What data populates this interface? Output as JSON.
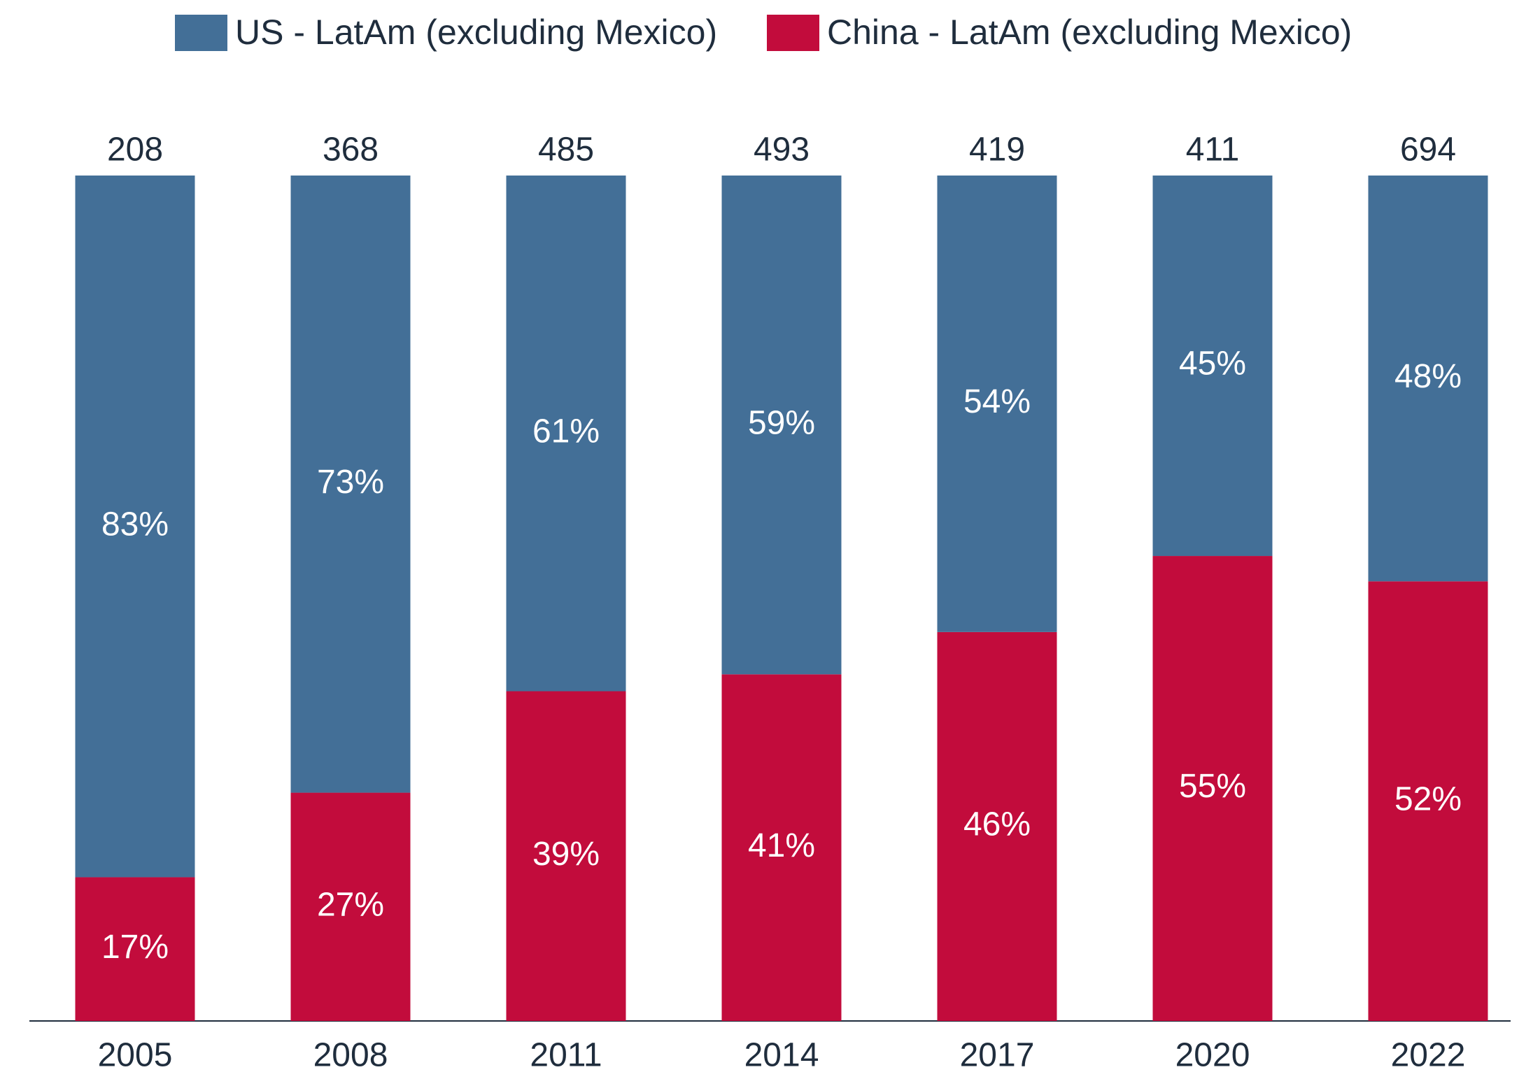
{
  "chart_data": {
    "type": "stacked_bar_100",
    "categories": [
      "2005",
      "2008",
      "2011",
      "2014",
      "2017",
      "2020",
      "2022"
    ],
    "series": [
      {
        "name": "US - LatAm (excluding Mexico)",
        "color": "#436f97",
        "values": [
          83,
          73,
          61,
          59,
          54,
          45,
          48
        ],
        "value_labels": [
          "83%",
          "73%",
          "61%",
          "59%",
          "54%",
          "45%",
          "48%"
        ]
      },
      {
        "name": "China - LatAm (excluding Mexico)",
        "color": "#c20c3c",
        "values": [
          17,
          27,
          39,
          41,
          46,
          55,
          52
        ],
        "value_labels": [
          "17%",
          "27%",
          "39%",
          "41%",
          "46%",
          "55%",
          "52%"
        ]
      }
    ],
    "totals": [
      208,
      368,
      485,
      493,
      419,
      411,
      694
    ],
    "ylim": [
      0,
      100
    ]
  }
}
